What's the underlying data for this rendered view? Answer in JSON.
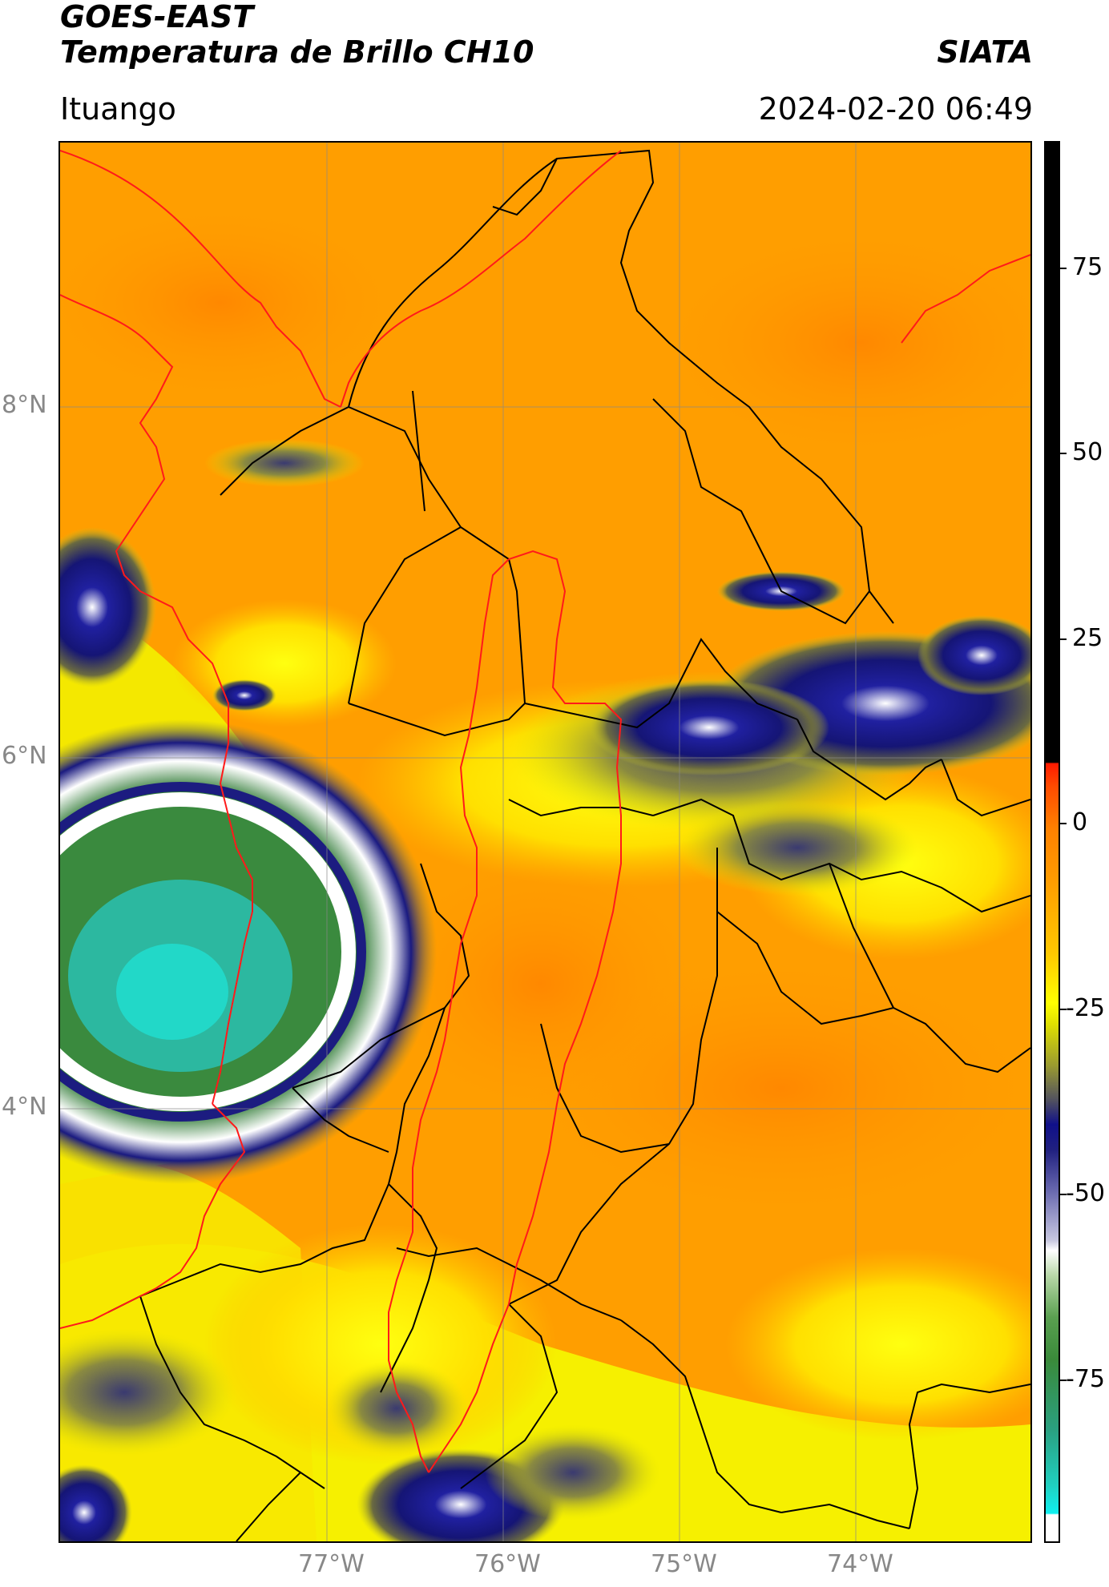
{
  "header": {
    "satellite": "GOES-EAST",
    "product": "Temperatura de Brillo CH10",
    "organization": "SIATA",
    "location": "Ituango",
    "datetime": "2024-02-20 06:49"
  },
  "map": {
    "lat_labels": [
      "8°N",
      "6°N",
      "4°N"
    ],
    "lon_labels": [
      "77°W",
      "76°W",
      "75°W",
      "74°W"
    ],
    "border_colors": {
      "department": "#000000",
      "coast_and_region": "#ff0000"
    }
  },
  "colorbar": {
    "ticks": [
      "75",
      "50",
      "25",
      "0",
      "-25",
      "-50",
      "-75"
    ],
    "colors": {
      "black": "#000000",
      "red": "#ff1a00",
      "orange": "#ff9900",
      "yellow": "#ffff00",
      "olive": "#7a7a3a",
      "navy": "#101070",
      "white": "#ffffff",
      "green": "#3a8a30",
      "cyan": "#20e0d0"
    }
  }
}
